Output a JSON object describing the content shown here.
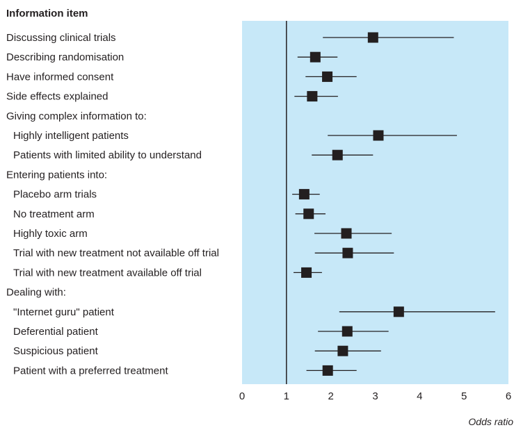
{
  "chart_data": {
    "type": "forest",
    "header": "Information item",
    "xlabel": "Odds ratio",
    "xlim": [
      0,
      6
    ],
    "xticks": [
      "0",
      "1",
      "2",
      "3",
      "4",
      "5",
      "6"
    ],
    "reference_line": 1,
    "colors": {
      "panel": "#c7e8f8",
      "marker": "#231f20",
      "text": "#231f20"
    },
    "rows": [
      {
        "label": "Discussing clinical trials",
        "kind": "item",
        "or": 2.95,
        "lo": 1.82,
        "hi": 4.77
      },
      {
        "label": "Describing randomisation",
        "kind": "item",
        "or": 1.65,
        "lo": 1.25,
        "hi": 2.15
      },
      {
        "label": "Have informed consent",
        "kind": "item",
        "or": 1.92,
        "lo": 1.43,
        "hi": 2.58
      },
      {
        "label": "Side effects explained",
        "kind": "item",
        "or": 1.58,
        "lo": 1.18,
        "hi": 2.16
      },
      {
        "label": "Giving complex information to:",
        "kind": "group"
      },
      {
        "label": "Highly intelligent patients",
        "kind": "subitem",
        "or": 3.07,
        "lo": 1.93,
        "hi": 4.84
      },
      {
        "label": "Patients with limited ability to understand",
        "kind": "subitem",
        "or": 2.15,
        "lo": 1.57,
        "hi": 2.95
      },
      {
        "label": "Entering patients into:",
        "kind": "group"
      },
      {
        "label": "Placebo arm trials",
        "kind": "subitem",
        "or": 1.4,
        "lo": 1.13,
        "hi": 1.75
      },
      {
        "label": "No treatment arm",
        "kind": "subitem",
        "or": 1.5,
        "lo": 1.2,
        "hi": 1.88
      },
      {
        "label": "Highly toxic arm",
        "kind": "subitem",
        "or": 2.35,
        "lo": 1.63,
        "hi": 3.37
      },
      {
        "label": "Trial with new treatment not available off trial",
        "kind": "subitem",
        "or": 2.38,
        "lo": 1.64,
        "hi": 3.42
      },
      {
        "label": "Trial with new treatment available off trial",
        "kind": "subitem",
        "or": 1.45,
        "lo": 1.16,
        "hi": 1.8
      },
      {
        "label": "Dealing with:",
        "kind": "group"
      },
      {
        "label": "\"Internet guru\" patient",
        "kind": "subitem",
        "or": 3.53,
        "lo": 2.19,
        "hi": 5.7
      },
      {
        "label": "Deferential patient",
        "kind": "subitem",
        "or": 2.37,
        "lo": 1.71,
        "hi": 3.3
      },
      {
        "label": "Suspicious patient",
        "kind": "subitem",
        "or": 2.27,
        "lo": 1.64,
        "hi": 3.13
      },
      {
        "label": "Patient with a preferred treatment",
        "kind": "subitem",
        "or": 1.93,
        "lo": 1.45,
        "hi": 2.58
      }
    ]
  }
}
